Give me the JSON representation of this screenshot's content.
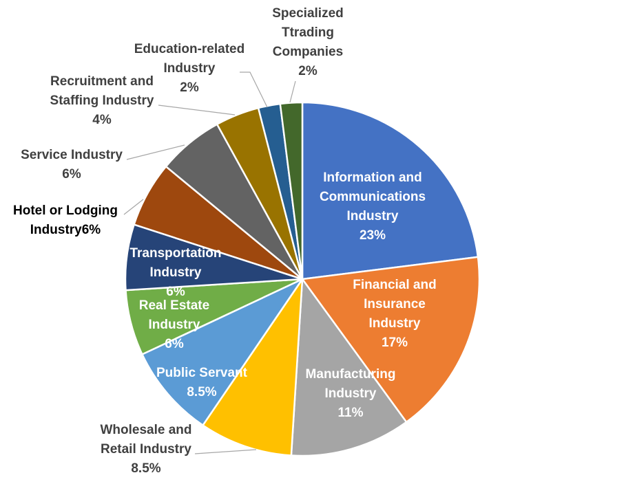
{
  "chart_data": {
    "type": "pie",
    "title": "",
    "legend": "none",
    "slices": [
      {
        "name": "Information and Communications Industry",
        "label_lines": [
          "Information and",
          "Communications",
          "Industry",
          "23%"
        ],
        "value": 23,
        "color": "#4472C4",
        "label_color": "#ffffff"
      },
      {
        "name": "Financial and Insurance Industry",
        "label_lines": [
          "Financial and",
          "Insurance",
          "Industry",
          "17%"
        ],
        "value": 17,
        "color": "#ED7D31",
        "label_color": "#ffffff"
      },
      {
        "name": "Manufacturing Industry",
        "label_lines": [
          "Manufacturing",
          "Industry",
          "11%"
        ],
        "value": 11,
        "color": "#A5A5A5",
        "label_color": "#ffffff"
      },
      {
        "name": "Wholesale and Retail Industry",
        "label_lines": [
          "Wholesale and",
          "Retail Industry",
          "8.5%"
        ],
        "value": 8.5,
        "color": "#FFC000",
        "label_color": "#404040"
      },
      {
        "name": "Public Servant",
        "label_lines": [
          "Public Servant",
          "8.5%"
        ],
        "value": 8.5,
        "color": "#5B9BD5",
        "label_color": "#ffffff"
      },
      {
        "name": "Real Estate Industry",
        "label_lines": [
          "Real Estate",
          "Industry",
          "6%"
        ],
        "value": 6,
        "color": "#70AD47",
        "label_color": "#ffffff"
      },
      {
        "name": "Transportation Industry",
        "label_lines": [
          "Transportation",
          "Industry",
          "6%"
        ],
        "value": 6,
        "color": "#264478",
        "label_color": "#ffffff"
      },
      {
        "name": "Hotel or Lodging Industry",
        "label_lines": [
          "Hotel or Lodging",
          "Industry6%"
        ],
        "value": 6,
        "color": "#9E480E",
        "label_color": "#000000"
      },
      {
        "name": "Service Industry",
        "label_lines": [
          "Service Industry",
          "6%"
        ],
        "value": 6,
        "color": "#636363",
        "label_color": "#404040"
      },
      {
        "name": "Recruitment and Staffing Industry",
        "label_lines": [
          "Recruitment and",
          "Staffing Industry",
          "4%"
        ],
        "value": 4,
        "color": "#997300",
        "label_color": "#404040"
      },
      {
        "name": "Education-related Industry",
        "label_lines": [
          "Education-related",
          "Industry",
          "2%"
        ],
        "value": 2,
        "color": "#255E91",
        "label_color": "#404040"
      },
      {
        "name": "Specialized Ttrading Companies",
        "label_lines": [
          "Specialized",
          "Ttrading",
          "Companies",
          "2%"
        ],
        "value": 2,
        "color": "#43682B",
        "label_color": "#404040"
      }
    ]
  }
}
